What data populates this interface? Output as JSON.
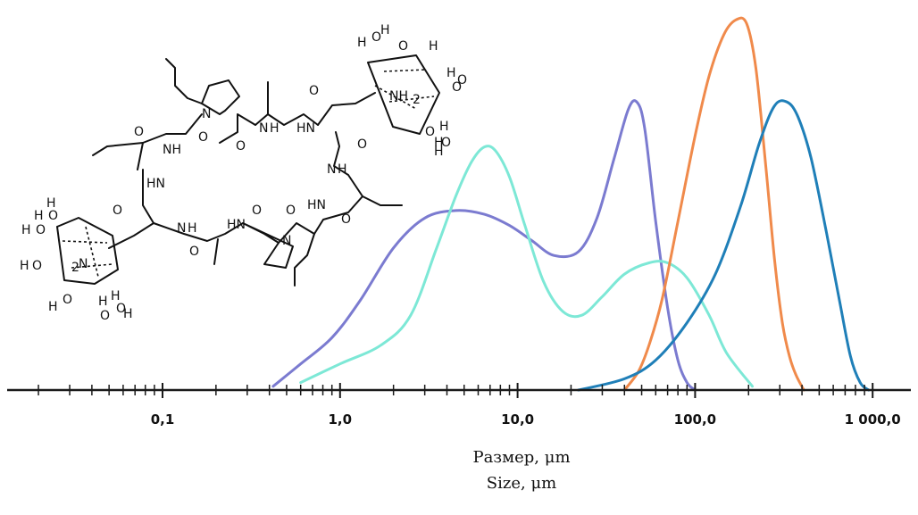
{
  "chart_data": {
    "type": "line",
    "x_scale": "log",
    "xlim": [
      0.01,
      1500
    ],
    "ylim": [
      0,
      100
    ],
    "xlabel_ru": "Размер, μm",
    "xlabel_en": "Size,  μm",
    "x_tick_labels": [
      {
        "value": 0.1,
        "label": "0,1"
      },
      {
        "value": 1,
        "label": "1,0"
      },
      {
        "value": 10,
        "label": "10,0"
      },
      {
        "value": 100,
        "label": "100,0"
      },
      {
        "value": 1000,
        "label": "1 000,0"
      }
    ],
    "grid": false,
    "legend": "none",
    "series": [
      {
        "color": "#7b7bd0",
        "x": [
          0.42,
          0.6,
          0.9,
          1.3,
          2,
          3,
          4.5,
          6.5,
          9,
          12,
          16,
          22,
          28,
          35,
          42,
          47,
          52,
          60,
          70,
          80,
          90,
          100
        ],
        "y": [
          1,
          7,
          14,
          24,
          38,
          46,
          48,
          47,
          44,
          40,
          36,
          37,
          46,
          62,
          75,
          77,
          70,
          45,
          22,
          8,
          2,
          0
        ]
      },
      {
        "color": "#7de8d6",
        "x": [
          0.6,
          1,
          1.7,
          2.5,
          3.5,
          4.5,
          5.5,
          6.5,
          7.5,
          9,
          11,
          14,
          18,
          23,
          30,
          40,
          55,
          70,
          90,
          120,
          150,
          210
        ],
        "y": [
          2,
          7,
          12,
          20,
          38,
          52,
          61,
          65,
          64,
          57,
          44,
          29,
          21,
          20,
          25,
          31,
          34,
          34,
          30,
          20,
          10,
          1
        ]
      },
      {
        "color": "#f08a4b",
        "x": [
          40,
          48,
          55,
          65,
          80,
          100,
          120,
          145,
          170,
          195,
          220,
          250,
          280,
          310,
          340,
          370,
          410
        ],
        "y": [
          0,
          5,
          12,
          24,
          45,
          68,
          84,
          95,
          99,
          98,
          86,
          60,
          35,
          18,
          9,
          4,
          0
        ]
      },
      {
        "color": "#1f7fb8",
        "x": [
          22,
          40,
          60,
          90,
          130,
          180,
          230,
          280,
          330,
          380,
          450,
          550,
          650,
          750,
          850,
          950
        ],
        "y": [
          0,
          3,
          8,
          18,
          31,
          49,
          66,
          76,
          77,
          73,
          62,
          42,
          24,
          9,
          2,
          0
        ]
      }
    ]
  },
  "molecule": {
    "atom_labels": [
      {
        "text": "H",
        "id": "h1"
      },
      {
        "text": "O",
        "id": "o1"
      },
      {
        "text": "H",
        "id": "h2"
      },
      {
        "text": "O",
        "id": "o2"
      },
      {
        "text": "H",
        "id": "h3"
      },
      {
        "text": "O",
        "id": "o3"
      },
      {
        "text": "NH",
        "id": "nh2a"
      },
      {
        "text": "2",
        "id": "nh2a_sub"
      },
      {
        "text": "H",
        "id": "h4"
      },
      {
        "text": "O",
        "id": "o4"
      },
      {
        "text": "O",
        "id": "o5"
      },
      {
        "text": "H",
        "id": "h5"
      },
      {
        "text": "H",
        "id": "h6"
      },
      {
        "text": "O",
        "id": "o6"
      },
      {
        "text": "H",
        "id": "h7"
      },
      {
        "text": "N",
        "id": "n_pro1"
      },
      {
        "text": "O",
        "id": "o7"
      },
      {
        "text": "N",
        "id": "n1"
      },
      {
        "text": "H",
        "id": "n1h"
      },
      {
        "text": "O",
        "id": "o8"
      },
      {
        "text": "HN",
        "id": "hn1"
      },
      {
        "text": "O",
        "id": "o9"
      },
      {
        "text": "O",
        "id": "o10"
      },
      {
        "text": "NH",
        "id": "nh1"
      },
      {
        "text": "O",
        "id": "o11"
      },
      {
        "text": "N",
        "id": "n2"
      },
      {
        "text": "H",
        "id": "n2h"
      },
      {
        "text": "HN",
        "id": "hn2"
      },
      {
        "text": "HN",
        "id": "hn3"
      },
      {
        "text": "O",
        "id": "o12"
      },
      {
        "text": "H",
        "id": "h8"
      },
      {
        "text": "O",
        "id": "o13"
      },
      {
        "text": "H",
        "id": "h9"
      },
      {
        "text": "O",
        "id": "o14"
      },
      {
        "text": "H",
        "id": "h10"
      },
      {
        "text": "O",
        "id": "o15"
      },
      {
        "text": "H",
        "id": "h11"
      },
      {
        "text": "N",
        "id": "h2n"
      },
      {
        "text": "2",
        "id": "h2n_sub"
      },
      {
        "text": "O",
        "id": "o16"
      },
      {
        "text": "N",
        "id": "n3"
      },
      {
        "text": "H",
        "id": "n3h"
      },
      {
        "text": "O",
        "id": "o17"
      },
      {
        "text": "HN",
        "id": "hn4"
      },
      {
        "text": "O",
        "id": "o18"
      },
      {
        "text": "N",
        "id": "n_pro2"
      },
      {
        "text": "O",
        "id": "o19"
      },
      {
        "text": "H",
        "id": "h12"
      },
      {
        "text": "O",
        "id": "o20"
      },
      {
        "text": "H",
        "id": "h13"
      },
      {
        "text": "H",
        "id": "h14"
      },
      {
        "text": "O",
        "id": "o21"
      },
      {
        "text": "O",
        "id": "o22"
      },
      {
        "text": "H",
        "id": "h15"
      }
    ]
  }
}
